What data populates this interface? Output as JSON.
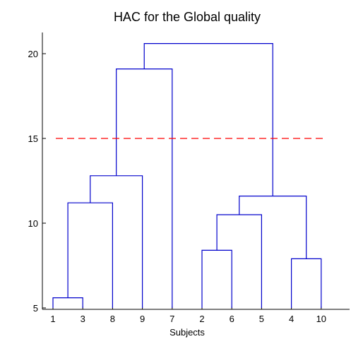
{
  "chart_data": {
    "type": "dendrogram",
    "title": "HAC for the Global quality",
    "xlabel": "Subjects",
    "ylabel": "",
    "ylim": [
      5,
      21.5
    ],
    "yticks": [
      5,
      10,
      15,
      20
    ],
    "leaf_order": [
      "1",
      "3",
      "8",
      "9",
      "7",
      "2",
      "6",
      "5",
      "4",
      "10"
    ],
    "merges": [
      {
        "a": "1",
        "b": "3",
        "height": 5.6
      },
      {
        "a": "2",
        "b": "6",
        "height": 8.4
      },
      {
        "a": "4",
        "b": "10",
        "height": 7.9
      },
      {
        "a": "(1,3)",
        "b": "8",
        "height": 11.2
      },
      {
        "a": "(2,6)",
        "b": "5",
        "height": 10.5
      },
      {
        "a": "(2,6,5)",
        "b": "(4,10)",
        "height": 11.6
      },
      {
        "a": "(1,3,8)",
        "b": "9",
        "height": 12.8
      },
      {
        "a": "(1,3,8,9)",
        "b": "7",
        "height": 19.1
      },
      {
        "a": "(1,3,8,9,7)",
        "b": "(2,6,5,4,10)",
        "height": 20.6
      }
    ],
    "cut_line": {
      "y": 15,
      "color": "#ff0000",
      "style": "dashed"
    },
    "line_color": "#0000cc",
    "grid": false
  }
}
